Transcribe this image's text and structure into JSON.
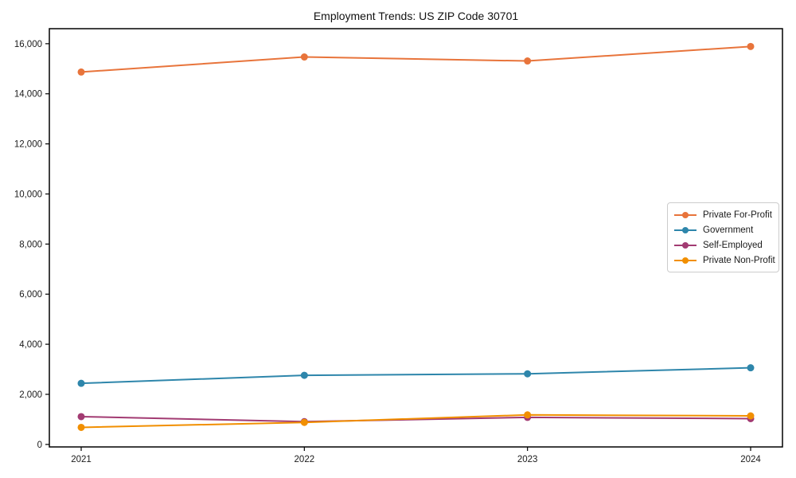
{
  "chart_data": {
    "type": "line",
    "title": "Employment Trends: US ZIP Code 30701",
    "xlabel": "",
    "ylabel": "",
    "categories": [
      "2021",
      "2022",
      "2023",
      "2024"
    ],
    "series": [
      {
        "name": "Private For-Profit",
        "color": "#E8743B",
        "values": [
          14870,
          15470,
          15310,
          15890
        ]
      },
      {
        "name": "Government",
        "color": "#2E86AB",
        "values": [
          2440,
          2760,
          2820,
          3060
        ]
      },
      {
        "name": "Self-Employed",
        "color": "#A23B72",
        "values": [
          1110,
          910,
          1080,
          1030
        ]
      },
      {
        "name": "Private Non-Profit",
        "color": "#F18F01",
        "values": [
          680,
          880,
          1180,
          1140
        ]
      }
    ],
    "ylim": [
      -100,
      16600
    ],
    "yticks": [
      0,
      2000,
      4000,
      6000,
      8000,
      10000,
      12000,
      14000,
      16000
    ],
    "ytick_labels": [
      "0",
      "2,000",
      "4,000",
      "6,000",
      "8,000",
      "10,000",
      "12,000",
      "14,000",
      "16,000"
    ],
    "grid": "off",
    "legend_position": "center-right"
  }
}
